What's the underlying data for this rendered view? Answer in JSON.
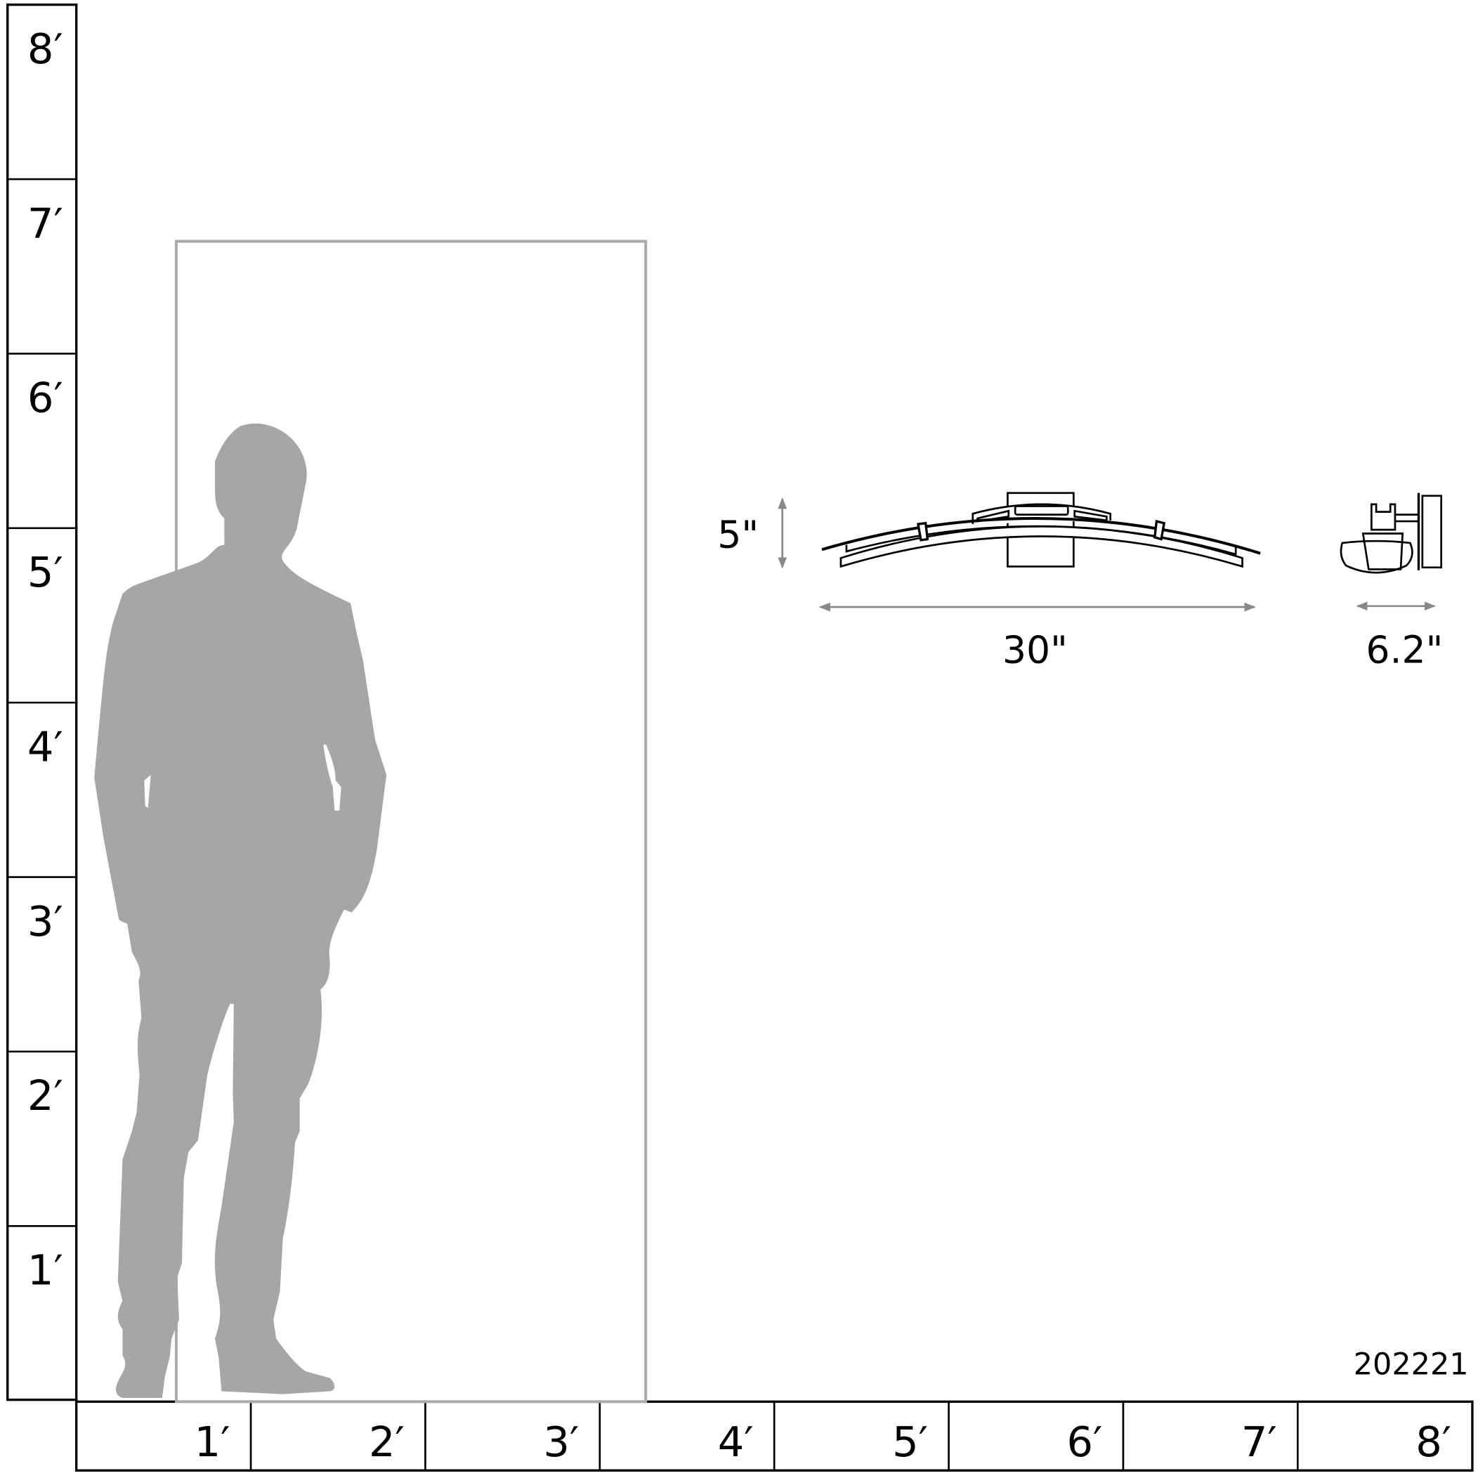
{
  "vertical_ruler": {
    "labels": [
      "8′",
      "7′",
      "6′",
      "5′",
      "4′",
      "3′",
      "2′",
      "1′"
    ]
  },
  "horizontal_ruler": {
    "labels": [
      "1′",
      "2′",
      "3′",
      "4′",
      "5′",
      "6′",
      "7′",
      "8′"
    ]
  },
  "dimensions": {
    "height": "5\"",
    "width": "30\"",
    "depth": "6.2\""
  },
  "product_code": "202221",
  "colors": {
    "silhouette": "#a6a6a6",
    "door": "#aaaaaa",
    "dimension_arrow": "#888888",
    "line": "#000000"
  }
}
